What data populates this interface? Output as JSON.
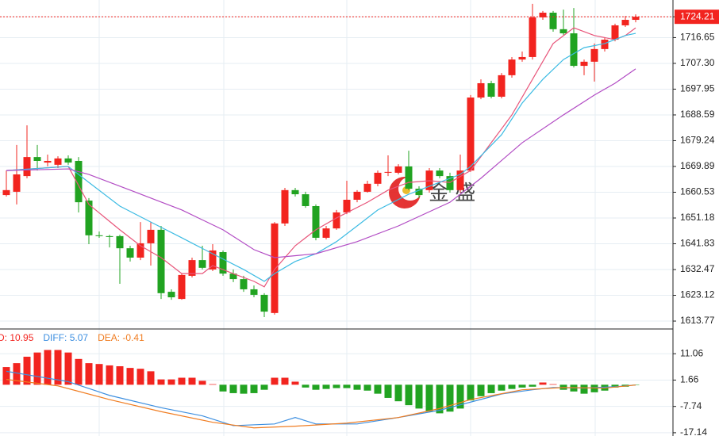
{
  "chart_data": [
    {
      "type": "candlestick",
      "open": [
        1659.5,
        1660.7,
        1666.4,
        1673.3,
        1671.3,
        1670.5,
        1672.8,
        1671.9,
        1657.5,
        1644.9,
        1644.6,
        1644.6,
        1640.2,
        1636.8,
        1642.0,
        1646.9,
        1624.4,
        1621.8,
        1630.2,
        1635.9,
        1632.5,
        1638.8,
        1631.0,
        1629.0,
        1625.3,
        1623.3,
        1616.7,
        1649.2,
        1661.3,
        1659.8,
        1655.5,
        1644.0,
        1647.4,
        1653.2,
        1657.8,
        1660.7,
        1663.6,
        1667.6,
        1667.6,
        1669.9,
        1661.8,
        1661.3,
        1668.4,
        1666.4,
        1661.3,
        1668.4,
        1694.9,
        1700.1,
        1695.2,
        1703.0,
        1708.7,
        1709.6,
        1724.0,
        1725.7,
        1719.7,
        1718.2,
        1706.4,
        1707.9,
        1712.5,
        1715.9,
        1721.1,
        1723.1
      ],
      "close": [
        1661.3,
        1667.0,
        1673.3,
        1671.9,
        1671.9,
        1672.8,
        1671.3,
        1656.9,
        1644.9,
        1644.6,
        1644.3,
        1640.2,
        1636.8,
        1642.0,
        1646.9,
        1623.9,
        1622.4,
        1630.5,
        1635.9,
        1633.1,
        1639.4,
        1631.0,
        1629.0,
        1625.3,
        1623.3,
        1617.2,
        1649.2,
        1661.3,
        1659.8,
        1655.5,
        1644.0,
        1647.4,
        1653.2,
        1657.8,
        1660.7,
        1663.6,
        1667.6,
        1667.9,
        1669.9,
        1661.8,
        1659.5,
        1668.4,
        1666.4,
        1661.3,
        1668.4,
        1694.9,
        1700.1,
        1695.2,
        1703.0,
        1708.7,
        1709.6,
        1724.0,
        1725.7,
        1719.7,
        1718.2,
        1706.4,
        1707.9,
        1712.5,
        1715.9,
        1721.1,
        1723.1,
        1724.21
      ],
      "high": [
        1668.4,
        1677.7,
        1684.8,
        1677.7,
        1674.2,
        1673.6,
        1673.9,
        1673.3,
        1658.4,
        1646.3,
        1645.1,
        1645.1,
        1641.1,
        1649.7,
        1649.7,
        1648.3,
        1625.3,
        1631.0,
        1636.8,
        1641.1,
        1641.7,
        1639.4,
        1632.5,
        1630.2,
        1626.7,
        1623.9,
        1649.7,
        1662.1,
        1662.1,
        1660.7,
        1656.1,
        1648.3,
        1654.1,
        1664.7,
        1661.3,
        1664.7,
        1668.4,
        1673.9,
        1670.7,
        1675.6,
        1662.7,
        1669.3,
        1669.3,
        1667.6,
        1674.2,
        1695.8,
        1701.5,
        1701.0,
        1703.8,
        1709.6,
        1711.6,
        1728.9,
        1726.3,
        1726.3,
        1726.8,
        1727.4,
        1708.7,
        1714.5,
        1716.5,
        1721.7,
        1724.5,
        1725.1
      ],
      "low": [
        1659.0,
        1656.1,
        1665.6,
        1668.4,
        1669.9,
        1669.3,
        1670.5,
        1653.2,
        1641.7,
        1644.0,
        1640.5,
        1627.3,
        1635.4,
        1635.9,
        1633.9,
        1621.8,
        1621.5,
        1621.5,
        1629.6,
        1632.5,
        1631.9,
        1630.2,
        1627.9,
        1624.4,
        1622.4,
        1615.2,
        1616.1,
        1648.3,
        1659.0,
        1654.9,
        1643.1,
        1643.4,
        1646.9,
        1652.6,
        1656.9,
        1660.4,
        1662.7,
        1666.4,
        1667.0,
        1661.3,
        1658.4,
        1660.4,
        1665.6,
        1660.4,
        1660.4,
        1667.9,
        1694.3,
        1694.6,
        1694.6,
        1702.1,
        1707.9,
        1708.7,
        1723.1,
        1718.8,
        1717.6,
        1705.8,
        1703.0,
        1700.7,
        1711.6,
        1715.3,
        1720.5,
        1722.2
      ],
      "up_color": "#f2241f",
      "down_color": "#21a321",
      "series": [
        {
          "color": "#e8557a",
          "x": [
            0,
            6,
            8,
            11,
            13,
            15,
            17,
            19,
            20,
            22,
            24,
            25,
            26,
            28,
            30,
            32,
            35,
            37,
            39,
            41,
            43,
            45,
            47,
            49,
            51,
            53,
            55,
            57,
            59,
            60,
            61
          ],
          "values": [
            1668.4,
            1669.9,
            1656.1,
            1646.9,
            1641.1,
            1636.8,
            1631.0,
            1631.0,
            1633.9,
            1631.0,
            1628.2,
            1626.2,
            1632.5,
            1641.1,
            1646.9,
            1651.2,
            1656.9,
            1661.3,
            1664.1,
            1664.7,
            1664.1,
            1668.4,
            1678.5,
            1688.6,
            1701.5,
            1714.5,
            1720.2,
            1717.4,
            1715.9,
            1717.4,
            1720.2
          ]
        },
        {
          "color": "#3cbbe3",
          "x": [
            0,
            6,
            8,
            11,
            14,
            17,
            20,
            23,
            25,
            26,
            28,
            30,
            32,
            34,
            36,
            39,
            41,
            44,
            45,
            48,
            50,
            52,
            54,
            56,
            58,
            60,
            61
          ],
          "values": [
            1668.4,
            1669.9,
            1664.1,
            1655.5,
            1649.7,
            1644.0,
            1638.2,
            1632.5,
            1628.2,
            1631.0,
            1635.4,
            1638.2,
            1642.6,
            1648.3,
            1654.1,
            1659.8,
            1662.7,
            1667.0,
            1669.9,
            1681.4,
            1692.9,
            1701.5,
            1708.7,
            1713.0,
            1714.5,
            1717.4,
            1718.2
          ]
        },
        {
          "color": "#b24cc4",
          "x": [
            0,
            6,
            8,
            12,
            17,
            21,
            24,
            26,
            30,
            34,
            38,
            43,
            46,
            50,
            54,
            57,
            59,
            61
          ],
          "values": [
            1668.4,
            1669.0,
            1667.0,
            1661.3,
            1654.1,
            1646.9,
            1639.7,
            1636.8,
            1638.2,
            1642.6,
            1648.3,
            1656.9,
            1665.6,
            1678.5,
            1688.6,
            1695.8,
            1700.1,
            1705.3
          ]
        }
      ],
      "last_price": {
        "value": 1724.21,
        "label": "1724.21"
      },
      "ylim": [
        1610.9,
        1730.3
      ],
      "yticks": [
        1724.21,
        1716.65,
        {
          "value": 1707.3,
          "label": "1707.30"
        },
        1697.95,
        1688.59,
        1679.24,
        1669.89,
        1660.53,
        1651.18,
        1641.83,
        1632.47,
        1623.12,
        1613.77
      ],
      "grid": true,
      "watermark": "金 盛"
    },
    {
      "type": "bar",
      "values": [
        6.3,
        7.7,
        10.0,
        11.5,
        12.4,
        12.4,
        11.5,
        9.2,
        7.7,
        7.4,
        6.9,
        6.6,
        6.0,
        5.7,
        4.8,
        1.9,
        1.9,
        2.5,
        2.5,
        1.4,
        0.2,
        -2.4,
        -3.0,
        -3.2,
        -3.0,
        -1.8,
        2.5,
        2.5,
        1.1,
        -1.0,
        -1.8,
        -1.5,
        -1.2,
        -1.2,
        -1.8,
        -2.1,
        -3.2,
        -4.7,
        -5.9,
        -7.3,
        -8.5,
        -9.6,
        -10.2,
        -9.6,
        -8.5,
        -5.6,
        -4.1,
        -3.0,
        -2.1,
        -1.5,
        -1.0,
        -0.7,
        0.8,
        0.2,
        -1.8,
        -2.4,
        -3.2,
        -2.7,
        -2.1,
        -1.0,
        -0.7,
        -0.1
      ],
      "up_color": "#f2241f",
      "down_color": "#21a321",
      "legend": [
        {
          "text": "D: 10.95",
          "color": "#f2241f"
        },
        {
          "text": "DIFF: 5.07",
          "color": "#3d8fe0"
        },
        {
          "text": "DEA: -0.41",
          "color": "#f07d22"
        }
      ],
      "series": [
        {
          "color": "#3d8fe0",
          "x": [
            0,
            6,
            10,
            15,
            19,
            22,
            26,
            28,
            30,
            34,
            38,
            42,
            45,
            48,
            51,
            53,
            56,
            59,
            61
          ],
          "values": [
            4.8,
            1.1,
            -3.8,
            -8.2,
            -11.1,
            -14.6,
            -14.0,
            -11.7,
            -14.0,
            -14.0,
            -11.7,
            -9.1,
            -6.2,
            -3.3,
            -1.8,
            -1.0,
            -1.2,
            -0.7,
            -0.1
          ]
        },
        {
          "color": "#f07d22",
          "x": [
            0,
            5,
            10,
            15,
            20,
            24,
            28,
            33,
            38,
            42,
            45,
            50,
            54,
            58,
            61
          ],
          "values": [
            1.9,
            -0.4,
            -5.3,
            -9.6,
            -13.4,
            -15.4,
            -14.8,
            -13.7,
            -11.7,
            -8.5,
            -5.3,
            -1.8,
            -1.0,
            -1.2,
            -0.1
          ]
        }
      ],
      "ylim": [
        -18.3,
        19.9
      ],
      "yticks": [
        11.06,
        1.66,
        -7.74,
        -17.14
      ],
      "grid": true
    }
  ]
}
